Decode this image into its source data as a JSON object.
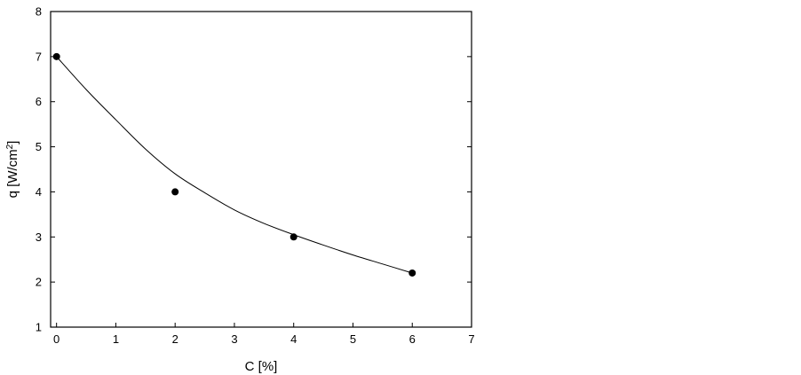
{
  "chart_data": {
    "type": "scatter",
    "title": "",
    "xlabel": "C [%]",
    "ylabel": {
      "prefix": "q [W/cm",
      "superscript": "2",
      "suffix": "]"
    },
    "xlim": [
      -0.1,
      7
    ],
    "ylim": [
      1,
      8
    ],
    "xticks": [
      0,
      1,
      2,
      3,
      4,
      5,
      6,
      7
    ],
    "yticks": [
      1,
      2,
      3,
      4,
      5,
      6,
      7,
      8
    ],
    "grid": false,
    "series": [
      {
        "kind": "points",
        "x": [
          0,
          2,
          4,
          6
        ],
        "y": [
          7.0,
          4.0,
          3.0,
          2.2
        ]
      },
      {
        "kind": "fit-line",
        "x": [
          0,
          0.5,
          1,
          1.5,
          2,
          2.5,
          3,
          3.5,
          4,
          4.5,
          5,
          5.5,
          6
        ],
        "y": [
          7.0,
          6.27,
          5.6,
          4.95,
          4.4,
          3.98,
          3.6,
          3.3,
          3.05,
          2.82,
          2.6,
          2.4,
          2.2
        ]
      }
    ],
    "colors": {
      "axis": "#000000",
      "points": "#000000",
      "line": "#000000"
    }
  }
}
